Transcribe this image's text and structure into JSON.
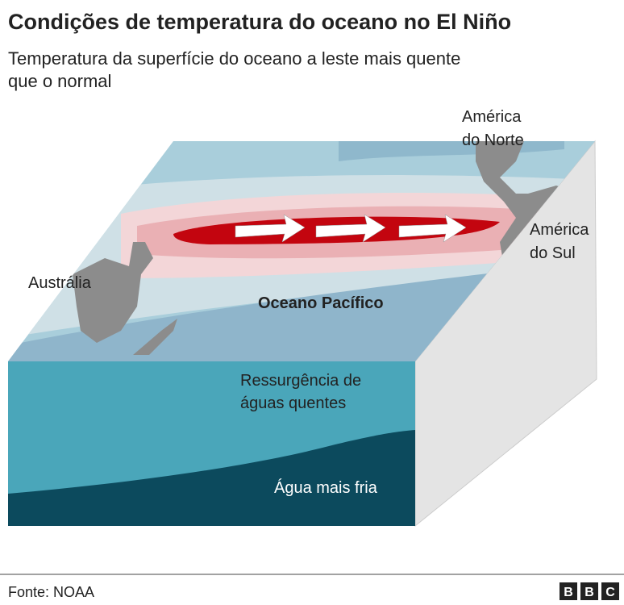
{
  "header": {
    "title": "Condições de temperatura do oceano no El Niño",
    "subtitle": [
      "Temperatura da superfície do oceano a leste mais quente",
      "que o normal"
    ]
  },
  "labels": {
    "north_america": [
      "América",
      "do Norte"
    ],
    "south_america": [
      "América",
      "do Sul"
    ],
    "australia": "Austrália",
    "ocean": "Oceano Pacífico",
    "upwelling": [
      "Ressurgência de",
      "águas quentes"
    ],
    "cold_water": "Água mais fria"
  },
  "footer": {
    "source": "Fonte: NOAA",
    "logo": [
      "B",
      "B",
      "C"
    ]
  }
}
